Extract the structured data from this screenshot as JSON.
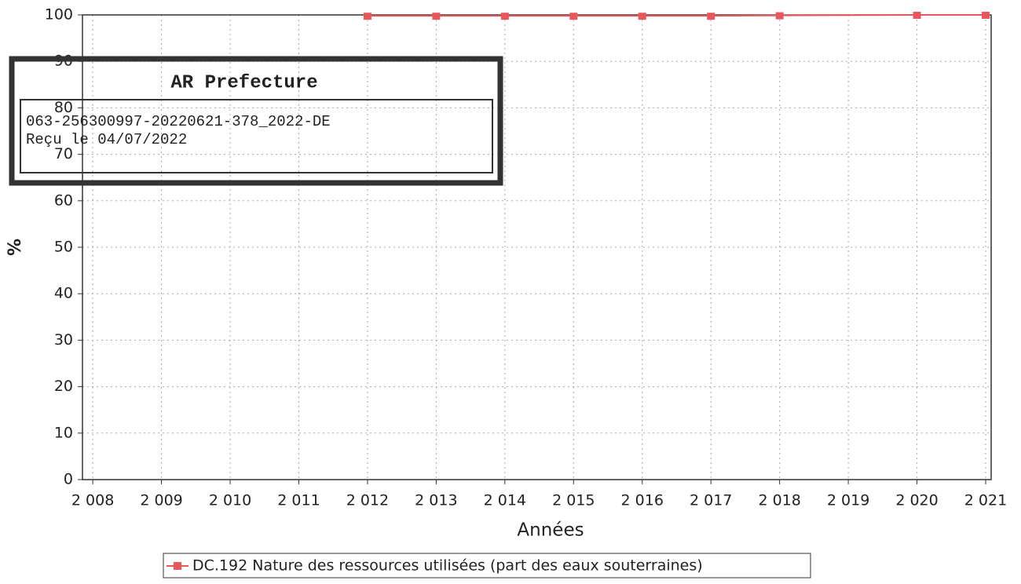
{
  "chart_data": {
    "type": "line",
    "xlabel": "Années",
    "ylabel": "%",
    "x": [
      2012,
      2013,
      2014,
      2015,
      2016,
      2017,
      2018,
      2020,
      2021
    ],
    "series": [
      {
        "name": "DC.192 Nature des ressources utilisées (part des eaux souterraines)",
        "color": "#e8575c",
        "values": [
          99.8,
          99.8,
          99.8,
          99.8,
          99.8,
          99.8,
          99.9,
          100,
          100
        ]
      }
    ],
    "xlim": [
      2007.85,
      2021.08
    ],
    "xticks": [
      {
        "value": 2008,
        "label": "2 008"
      },
      {
        "value": 2009,
        "label": "2 009"
      },
      {
        "value": 2010,
        "label": "2 010"
      },
      {
        "value": 2011,
        "label": "2 011"
      },
      {
        "value": 2012,
        "label": "2 012"
      },
      {
        "value": 2013,
        "label": "2 013"
      },
      {
        "value": 2014,
        "label": "2 014"
      },
      {
        "value": 2015,
        "label": "2 015"
      },
      {
        "value": 2016,
        "label": "2 016"
      },
      {
        "value": 2017,
        "label": "2 017"
      },
      {
        "value": 2018,
        "label": "2 018"
      },
      {
        "value": 2019,
        "label": "2 019"
      },
      {
        "value": 2020,
        "label": "2 020"
      },
      {
        "value": 2021,
        "label": "2 021"
      }
    ],
    "ylim": [
      0,
      100
    ],
    "yticks": [
      0,
      10,
      20,
      30,
      40,
      50,
      60,
      70,
      80,
      90,
      100
    ],
    "grid": true,
    "legend": "bottom"
  },
  "stamp": {
    "title": "AR Prefecture",
    "lines": [
      "063-256300997-20220621-378_2022-DE",
      "Reçu le 04/07/2022"
    ]
  }
}
